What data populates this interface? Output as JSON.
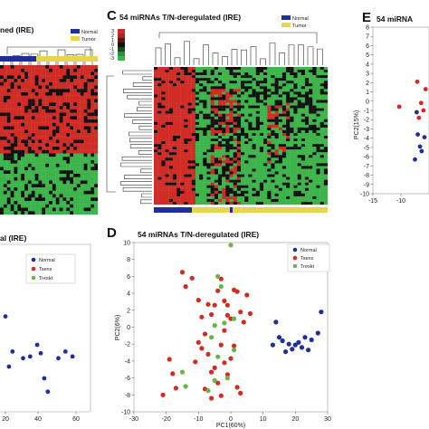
{
  "colors": {
    "normal": "#1f2f99",
    "tumor": "#e9d54a",
    "heat_red": "#d02c25",
    "heat_green": "#3cb449",
    "heat_black": "#111111",
    "tsens": "#d42a20",
    "treskt": "#6cb44a"
  },
  "panels": {
    "B": {
      "title_fragment": "ned (IRE)",
      "legend": [
        "Normal",
        "Tumor"
      ]
    },
    "C": {
      "letter": "C",
      "title": "54 miRNAs T/N-deregulated (IRE)",
      "legend": [
        "Normal",
        "Tumor"
      ]
    },
    "D": {
      "letter": "D",
      "title": "54 miRNAs T/N-deregulated (IRE)",
      "xlabel": "PC1(60%)",
      "ylabel": "PC2(6%)",
      "legend": [
        "Normal",
        "Tsens",
        "Treskt"
      ]
    },
    "E": {
      "letter": "E",
      "title_fragment": "54 miRNA",
      "ylabel": "PC2(15%)"
    },
    "F": {
      "title_fragment": "al (IRE)",
      "legend": [
        "Normal",
        "Tsens",
        "Treskt"
      ]
    }
  },
  "chart_data": [
    {
      "panel": "D",
      "type": "scatter",
      "title": "54 miRNAs T/N-deregulated (IRE)",
      "xlabel": "PC1(60%)",
      "ylabel": "PC2(6%)",
      "xlim": [
        -30,
        30
      ],
      "ylim": [
        -10,
        10
      ],
      "xticks": [
        -30,
        -20,
        -10,
        0,
        10,
        20,
        30
      ],
      "yticks": [
        -10,
        -8,
        -6,
        -4,
        -2,
        0,
        2,
        4,
        6,
        8,
        10
      ],
      "legend_position": "top-right",
      "series": [
        {
          "name": "Normal",
          "color": "#1f2f99",
          "points": [
            [
              28,
              1.8
            ],
            [
              27,
              -0.7
            ],
            [
              25,
              -1.5
            ],
            [
              24,
              -2.7
            ],
            [
              23,
              -1.2
            ],
            [
              22,
              -2.4
            ],
            [
              21,
              -1.8
            ],
            [
              20,
              -2.1
            ],
            [
              19,
              -2.6
            ],
            [
              18,
              -2.0
            ],
            [
              17,
              -2.9
            ],
            [
              16,
              -1.6
            ],
            [
              15,
              -1.2
            ],
            [
              14,
              0.6
            ],
            [
              13,
              -2.1
            ]
          ]
        },
        {
          "name": "Tsens",
          "color": "#d42a20",
          "points": [
            [
              -15,
              6.5
            ],
            [
              -14,
              4.8
            ],
            [
              -12,
              5.8
            ],
            [
              -10,
              3.2
            ],
            [
              -9,
              1.2
            ],
            [
              -7,
              2.7
            ],
            [
              -6,
              1.5
            ],
            [
              -5,
              2.6
            ],
            [
              -4,
              4.3
            ],
            [
              -3,
              5.7
            ],
            [
              -2,
              3.1
            ],
            [
              -1,
              1.4
            ],
            [
              0,
              1.0
            ],
            [
              2,
              4.2
            ],
            [
              3,
              1.8
            ],
            [
              4,
              0.6
            ],
            [
              5,
              3.8
            ],
            [
              6,
              1.6
            ],
            [
              -19,
              -3.8
            ],
            [
              -18,
              -5.5
            ],
            [
              -21,
              -8.0
            ],
            [
              -17,
              -7.2
            ],
            [
              -11,
              -4.1
            ],
            [
              -10,
              -1.8
            ],
            [
              -9,
              -2.5
            ],
            [
              -8,
              -0.8
            ],
            [
              -7,
              -3.2
            ],
            [
              -6,
              -5.3
            ],
            [
              -5,
              -4.8
            ],
            [
              -4,
              -6.6
            ],
            [
              -3,
              -2.1
            ],
            [
              -2,
              -4.2
            ],
            [
              -1,
              -5.6
            ],
            [
              0,
              -3.7
            ],
            [
              1,
              -2.2
            ],
            [
              2,
              -7.1
            ],
            [
              3,
              -7.8
            ],
            [
              -8,
              -7.3
            ],
            [
              -6,
              -8.4
            ],
            [
              -3,
              -8.1
            ],
            [
              -1,
              2.6
            ],
            [
              -2,
              -0.4
            ],
            [
              1,
              4.4
            ]
          ]
        },
        {
          "name": "Treskt",
          "color": "#6cb44a",
          "points": [
            [
              0,
              9.7
            ],
            [
              -3,
              4.8
            ],
            [
              -4,
              6.0
            ],
            [
              -2,
              0.5
            ],
            [
              1,
              1.0
            ],
            [
              -5,
              0.2
            ],
            [
              -6,
              -1.2
            ],
            [
              -15,
              -5.3
            ],
            [
              -14,
              -7.0
            ],
            [
              -7,
              -7.5
            ],
            [
              -5,
              -6.3
            ],
            [
              -1,
              -6.0
            ],
            [
              1,
              -2.7
            ],
            [
              -4,
              -3.5
            ]
          ]
        }
      ]
    },
    {
      "panel": "E",
      "type": "scatter",
      "ylabel": "PC2(15%)",
      "xlim": [
        -15,
        -5
      ],
      "ylim": [
        -10,
        8
      ],
      "xticks": [
        -15,
        -10
      ],
      "yticks": [
        -10,
        -9,
        -8,
        -7,
        -6,
        -5,
        -4,
        -3,
        -2,
        -1,
        0,
        1,
        2,
        3,
        4,
        5,
        6,
        7,
        8
      ],
      "series": [
        {
          "name": "Normal",
          "color": "#1f2f99",
          "points": [
            [
              -7.2,
              -1.2
            ],
            [
              -7.0,
              -3.6
            ],
            [
              -6.6,
              -4.9
            ],
            [
              -6.3,
              -5.4
            ],
            [
              -5.8,
              -3.9
            ],
            [
              -7.5,
              -6.3
            ]
          ]
        },
        {
          "name": "Tsens",
          "color": "#d42a20",
          "points": [
            [
              -10.3,
              -0.6
            ],
            [
              -7.1,
              2.1
            ],
            [
              -6.4,
              -0.2
            ],
            [
              -6.0,
              -1.0
            ],
            [
              -6.8,
              -1.8
            ],
            [
              -5.6,
              1.3
            ]
          ]
        }
      ]
    },
    {
      "panel": "F",
      "type": "scatter",
      "xlim": [
        0,
        60
      ],
      "xticks": [
        20,
        40,
        60
      ],
      "legend_position": "top-right",
      "series": [
        {
          "name": "Normal",
          "color": "#1f2f99",
          "points": [
            [
              1,
              80
            ],
            [
              4,
              65
            ],
            [
              8,
              50
            ],
            [
              12,
              42
            ],
            [
              20,
              57
            ],
            [
              22,
              27
            ],
            [
              24,
              36
            ],
            [
              30,
              32
            ],
            [
              34,
              33
            ],
            [
              38,
              40
            ],
            [
              40,
              35
            ],
            [
              42,
              20
            ],
            [
              44,
              12
            ],
            [
              50,
              32
            ],
            [
              54,
              36
            ],
            [
              58,
              33
            ]
          ]
        }
      ]
    },
    {
      "panel": "B",
      "type": "heatmap",
      "legend": [
        "Normal",
        "Tumor"
      ]
    },
    {
      "panel": "C",
      "type": "heatmap",
      "title": "54 miRNAs T/N-deregulated (IRE)",
      "legend": [
        "Normal",
        "Tumor"
      ]
    }
  ]
}
